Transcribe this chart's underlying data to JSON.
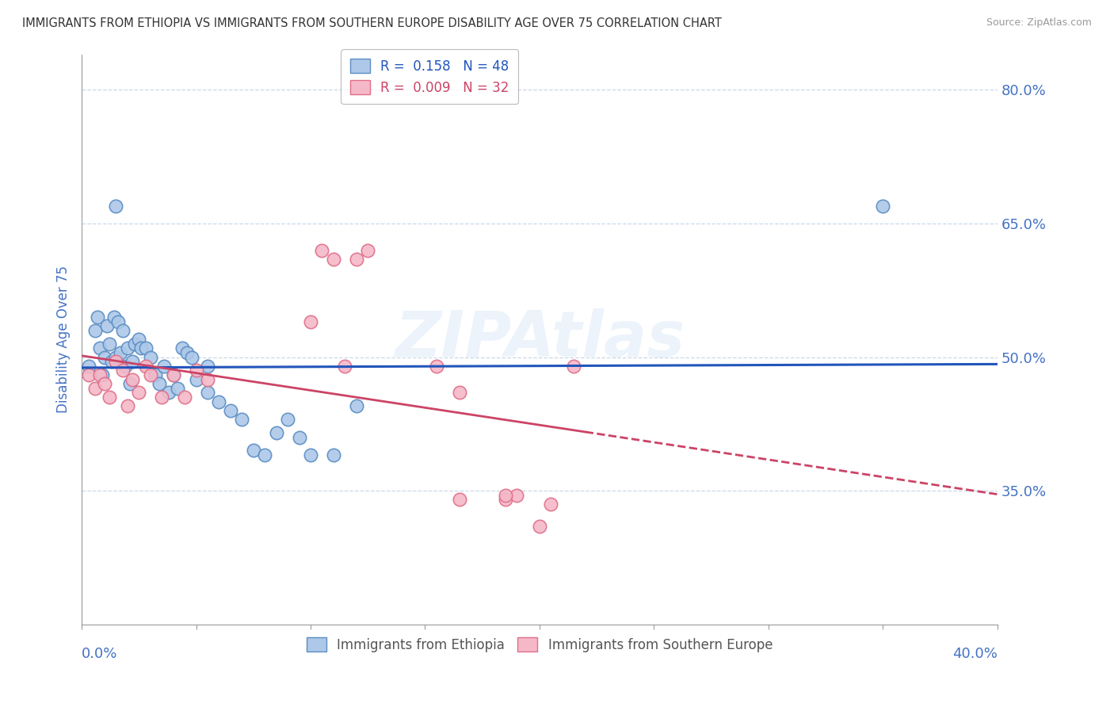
{
  "title": "IMMIGRANTS FROM ETHIOPIA VS IMMIGRANTS FROM SOUTHERN EUROPE DISABILITY AGE OVER 75 CORRELATION CHART",
  "source": "Source: ZipAtlas.com",
  "ylabel": "Disability Age Over 75",
  "xlim": [
    0.0,
    0.4
  ],
  "ylim": [
    0.2,
    0.84
  ],
  "yticks": [
    0.35,
    0.5,
    0.65,
    0.8
  ],
  "xticks": [
    0.0,
    0.05,
    0.1,
    0.15,
    0.2,
    0.25,
    0.3,
    0.35,
    0.4
  ],
  "ytick_labels": [
    "35.0%",
    "50.0%",
    "65.0%",
    "80.0%"
  ],
  "x_left_label": "0.0%",
  "x_right_label": "40.0%",
  "legend_label1": "R =  0.158   N = 48",
  "legend_label2": "R =  0.009   N = 32",
  "series1_label": "Immigrants from Ethiopia",
  "series2_label": "Immigrants from Southern Europe",
  "series1_color": "#adc8e8",
  "series2_color": "#f5b8c8",
  "series1_edge": "#5b8ec4",
  "series2_edge": "#e0708a",
  "trend1_color": "#2255bb",
  "trend2_color": "#cc4466",
  "watermark": "ZIPAtlas",
  "background_color": "#ffffff",
  "grid_color": "#c8d8e8",
  "title_color": "#333333",
  "axis_label_color": "#4472c4",
  "tick_label_color": "#4472c4",
  "blue_scatter_x": [
    0.003,
    0.006,
    0.007,
    0.008,
    0.009,
    0.01,
    0.011,
    0.012,
    0.013,
    0.014,
    0.015,
    0.016,
    0.017,
    0.018,
    0.019,
    0.02,
    0.021,
    0.022,
    0.023,
    0.025,
    0.026,
    0.028,
    0.03,
    0.032,
    0.034,
    0.036,
    0.038,
    0.04,
    0.042,
    0.044,
    0.046,
    0.048,
    0.05,
    0.055,
    0.06,
    0.065,
    0.07,
    0.075,
    0.08,
    0.085,
    0.09,
    0.095,
    0.1,
    0.11,
    0.12,
    0.35,
    0.015,
    0.055
  ],
  "blue_scatter_y": [
    0.49,
    0.53,
    0.545,
    0.51,
    0.48,
    0.5,
    0.535,
    0.515,
    0.495,
    0.545,
    0.5,
    0.54,
    0.505,
    0.53,
    0.49,
    0.51,
    0.47,
    0.495,
    0.515,
    0.52,
    0.51,
    0.51,
    0.5,
    0.48,
    0.47,
    0.49,
    0.46,
    0.48,
    0.465,
    0.51,
    0.505,
    0.5,
    0.475,
    0.46,
    0.45,
    0.44,
    0.43,
    0.395,
    0.39,
    0.415,
    0.43,
    0.41,
    0.39,
    0.39,
    0.445,
    0.67,
    0.67,
    0.49
  ],
  "pink_scatter_x": [
    0.003,
    0.006,
    0.008,
    0.01,
    0.012,
    0.015,
    0.018,
    0.02,
    0.022,
    0.025,
    0.028,
    0.03,
    0.035,
    0.04,
    0.045,
    0.05,
    0.055,
    0.1,
    0.105,
    0.11,
    0.115,
    0.12,
    0.125,
    0.155,
    0.165,
    0.185,
    0.19,
    0.2,
    0.205,
    0.215,
    0.185,
    0.165
  ],
  "pink_scatter_y": [
    0.48,
    0.465,
    0.48,
    0.47,
    0.455,
    0.495,
    0.485,
    0.445,
    0.475,
    0.46,
    0.49,
    0.48,
    0.455,
    0.48,
    0.455,
    0.485,
    0.475,
    0.54,
    0.62,
    0.61,
    0.49,
    0.61,
    0.62,
    0.49,
    0.46,
    0.34,
    0.345,
    0.31,
    0.335,
    0.49,
    0.345,
    0.34
  ]
}
